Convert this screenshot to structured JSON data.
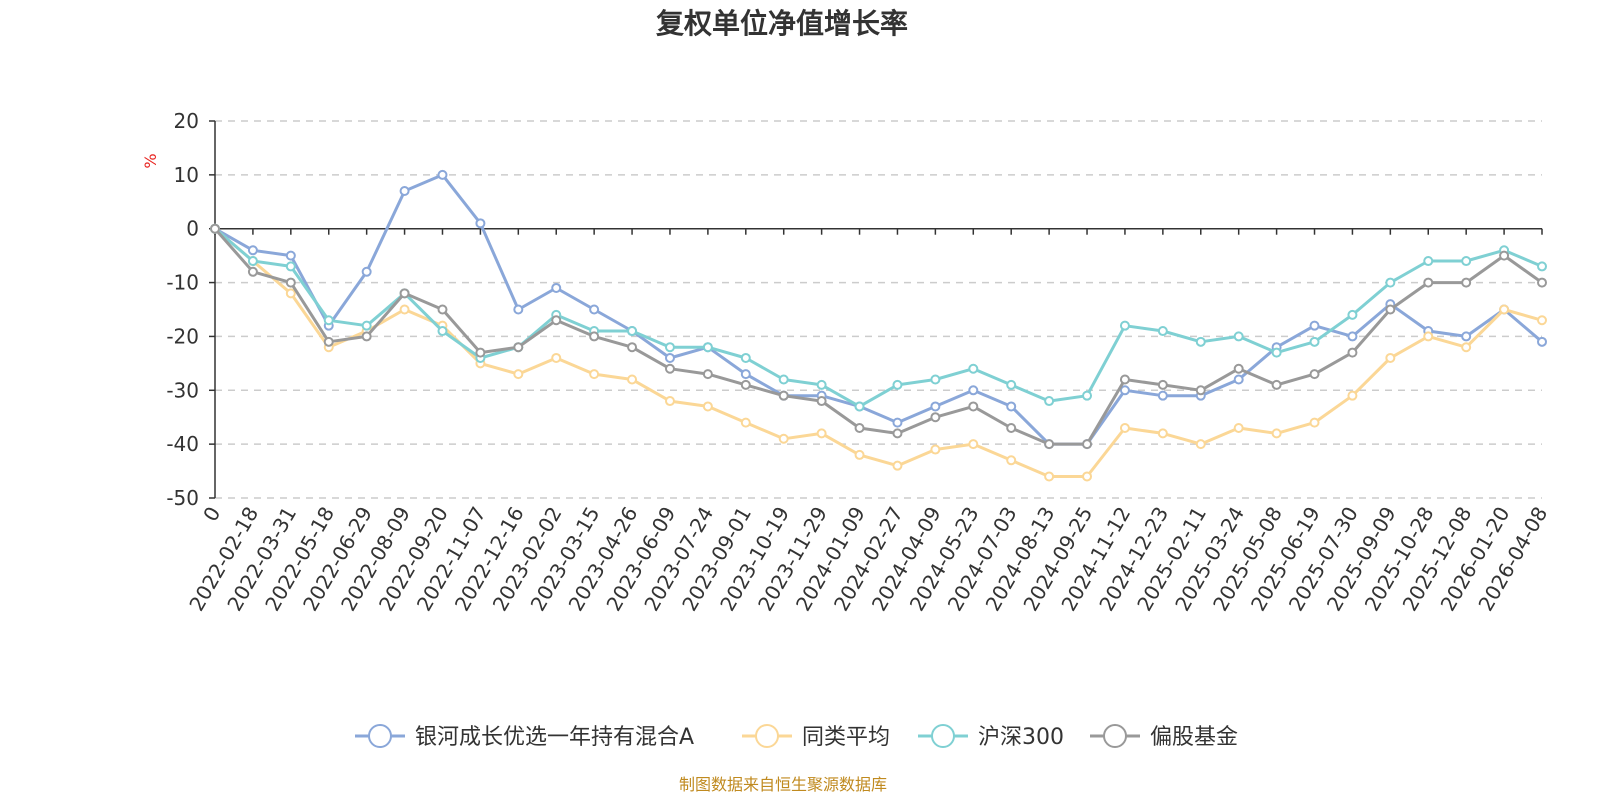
{
  "chart_data": {
    "type": "line",
    "title": "复权单位净值增长率",
    "ylabel": "%",
    "ylim": [
      -50,
      20
    ],
    "yticks": [
      20,
      10,
      0,
      -10,
      -20,
      -30,
      -40,
      -50
    ],
    "grid": true,
    "legend_position": "bottom",
    "source": "制图数据来自恒生聚源数据库",
    "x_tick_labels": [
      "0",
      "2022-02-18",
      "2022-03-31",
      "2022-05-18",
      "2022-06-29",
      "2022-08-09",
      "2022-09-20",
      "2022-11-07",
      "2022-12-16",
      "2023-02-02",
      "2023-03-15",
      "2023-04-26",
      "2023-06-09",
      "2023-07-24",
      "2023-09-01",
      "2023-10-19",
      "2023-11-29",
      "2024-01-09",
      "2024-02-27",
      "2024-04-09",
      "2024-05-23",
      "2024-07-03",
      "2024-08-13",
      "2024-09-25",
      "2024-11-12",
      "2024-12-23",
      "2025-02-11",
      "2025-03-24",
      "2025-05-08",
      "2025-06-19",
      "2025-07-30",
      "2025-09-09",
      "2025-10-28",
      "2025-12-08",
      "2026-01-20",
      "2026-04-08"
    ],
    "series": [
      {
        "name": "银河成长优选一年持有混合A",
        "color": "#8aa7d9",
        "values": [
          0,
          -4,
          -5,
          -18,
          -8,
          7,
          10,
          1,
          -15,
          -11,
          -15,
          -19,
          -24,
          -22,
          -27,
          -31,
          -31,
          -33,
          -36,
          -33,
          -30,
          -33,
          -40,
          -40,
          -30,
          -31,
          -31,
          -28,
          -22,
          -18,
          -20,
          -14,
          -19,
          -20,
          -15,
          -21
        ]
      },
      {
        "name": "同类平均",
        "color": "#fbd796",
        "values": [
          0,
          -6,
          -12,
          -22,
          -19,
          -15,
          -18,
          -25,
          -27,
          -24,
          -27,
          -28,
          -32,
          -33,
          -36,
          -39,
          -38,
          -42,
          -44,
          -41,
          -40,
          -43,
          -46,
          -46,
          -37,
          -38,
          -40,
          -37,
          -38,
          -36,
          -31,
          -24,
          -20,
          -22,
          -15,
          -17
        ]
      },
      {
        "name": "沪深300",
        "color": "#7fd0d3",
        "values": [
          0,
          -6,
          -7,
          -17,
          -18,
          -12,
          -19,
          -24,
          -22,
          -16,
          -19,
          -19,
          -22,
          -22,
          -24,
          -28,
          -29,
          -33,
          -29,
          -28,
          -26,
          -29,
          -32,
          -31,
          -18,
          -19,
          -21,
          -20,
          -23,
          -21,
          -16,
          -10,
          -6,
          -6,
          -4,
          -7
        ]
      },
      {
        "name": "偏股基金",
        "color": "#999999",
        "values": [
          0,
          -8,
          -10,
          -21,
          -20,
          -12,
          -15,
          -23,
          -22,
          -17,
          -20,
          -22,
          -26,
          -27,
          -29,
          -31,
          -32,
          -37,
          -38,
          -35,
          -33,
          -37,
          -40,
          -40,
          -28,
          -29,
          -30,
          -26,
          -29,
          -27,
          -23,
          -15,
          -10,
          -10,
          -5,
          -10
        ]
      }
    ]
  }
}
